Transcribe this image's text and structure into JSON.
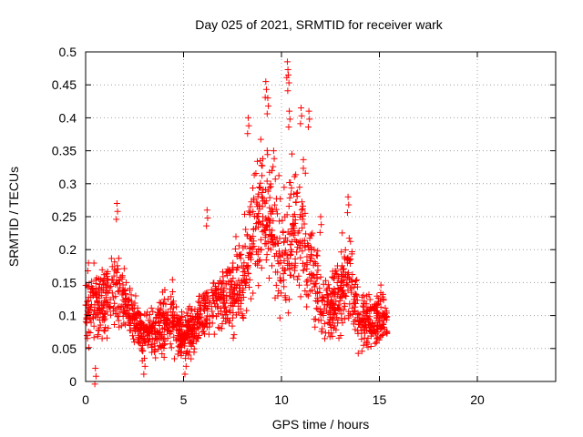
{
  "chart_data": {
    "type": "scatter",
    "title": "Day 025 of 2021, SRMTID for receiver wark",
    "xlabel": "GPS time / hours",
    "ylabel": "SRMTID / TECUs",
    "xlim": [
      0,
      24
    ],
    "ylim": [
      0,
      0.5
    ],
    "xticks": [
      0,
      5,
      10,
      15,
      20
    ],
    "xtick_labels": [
      "0",
      "5",
      "10",
      "15",
      "20"
    ],
    "yticks": [
      0,
      0.05,
      0.1,
      0.15,
      0.2,
      0.25,
      0.3,
      0.35,
      0.4,
      0.45,
      0.5
    ],
    "ytick_labels": [
      "0",
      "0.05",
      "0.1",
      "0.15",
      "0.2",
      "0.25",
      "0.3",
      "0.35",
      "0.4",
      "0.45",
      "0.5"
    ],
    "grid": true,
    "marker": "plus",
    "color": "#ff0000",
    "envelope": {
      "hours": [
        0.0,
        0.5,
        1.0,
        1.5,
        2.0,
        2.5,
        3.0,
        3.5,
        4.0,
        4.5,
        5.0,
        5.5,
        6.0,
        6.5,
        7.0,
        7.5,
        8.0,
        8.5,
        9.0,
        9.5,
        10.0,
        10.5,
        11.0,
        11.5,
        12.0,
        12.5,
        13.0,
        13.5,
        14.0,
        14.5,
        15.0,
        15.4
      ],
      "center": [
        0.12,
        0.11,
        0.12,
        0.15,
        0.12,
        0.09,
        0.07,
        0.08,
        0.09,
        0.09,
        0.07,
        0.08,
        0.11,
        0.12,
        0.12,
        0.13,
        0.15,
        0.22,
        0.27,
        0.24,
        0.19,
        0.22,
        0.23,
        0.18,
        0.12,
        0.11,
        0.14,
        0.16,
        0.09,
        0.09,
        0.1,
        0.09
      ],
      "spread": [
        0.05,
        0.05,
        0.05,
        0.06,
        0.04,
        0.03,
        0.03,
        0.03,
        0.04,
        0.04,
        0.03,
        0.03,
        0.04,
        0.04,
        0.04,
        0.05,
        0.06,
        0.08,
        0.09,
        0.08,
        0.07,
        0.08,
        0.08,
        0.06,
        0.05,
        0.04,
        0.06,
        0.06,
        0.04,
        0.04,
        0.04,
        0.03
      ]
    },
    "peaks": [
      {
        "x": 1.6,
        "y": 0.27
      },
      {
        "x": 6.2,
        "y": 0.26
      },
      {
        "x": 8.3,
        "y": 0.4
      },
      {
        "x": 9.2,
        "y": 0.455
      },
      {
        "x": 9.3,
        "y": 0.43
      },
      {
        "x": 9.6,
        "y": 0.35
      },
      {
        "x": 10.3,
        "y": 0.485
      },
      {
        "x": 10.35,
        "y": 0.465
      },
      {
        "x": 10.4,
        "y": 0.41
      },
      {
        "x": 11.0,
        "y": 0.415
      },
      {
        "x": 11.4,
        "y": 0.41
      },
      {
        "x": 12.0,
        "y": 0.25
      },
      {
        "x": 13.4,
        "y": 0.28
      },
      {
        "x": 0.5,
        "y": 0.02
      },
      {
        "x": 3.0,
        "y": 0.035
      },
      {
        "x": 5.1,
        "y": 0.035
      }
    ]
  }
}
